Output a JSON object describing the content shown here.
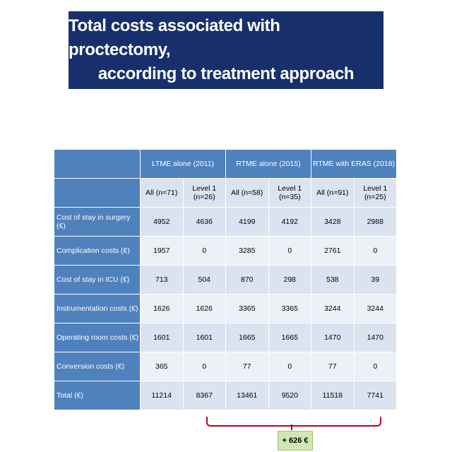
{
  "title": {
    "line1": "Total costs associated with proctectomy,",
    "line2": "according to treatment approach"
  },
  "table": {
    "groups": [
      "LTME alone (2011)",
      "RTME alone (2015)",
      "RTME with ERAS (2018)"
    ],
    "subheaders": [
      "All (n=71)",
      "Level 1 (n=26)",
      "All (n=58)",
      "Level 1 (n=35)",
      "All (n=91)",
      "Level 1 (n=25)"
    ],
    "rows": [
      {
        "label": "Cost of stay in surgery (€)",
        "values": [
          "4952",
          "4636",
          "4199",
          "4192",
          "3428",
          "2988"
        ]
      },
      {
        "label": "Complication costs (€)",
        "values": [
          "1957",
          "0",
          "3285",
          "0",
          "2761",
          "0"
        ]
      },
      {
        "label": "Cost of stay in ICU (€)",
        "values": [
          "713",
          "504",
          "870",
          "298",
          "538",
          "39"
        ]
      },
      {
        "label": "Instrumentation costs (€)",
        "values": [
          "1626",
          "1626",
          "3365",
          "3365",
          "3244",
          "3244"
        ]
      },
      {
        "label": "Operating room costs (€)",
        "values": [
          "1601",
          "1601",
          "1665",
          "1665",
          "1470",
          "1470"
        ]
      },
      {
        "label": "Conversion costs (€)",
        "values": [
          "365",
          "0",
          "77",
          "0",
          "77",
          "0"
        ]
      },
      {
        "label": "Total (€)",
        "values": [
          "11214",
          "8367",
          "13461",
          "9520",
          "11518",
          "7741"
        ]
      }
    ]
  },
  "annotation": {
    "difference": "+ 626 €"
  },
  "colors": {
    "title_bg": "#17306b",
    "header_blue": "#4f81bd",
    "bracket_red": "#c0001e",
    "badge_green": "#d1e6b3"
  }
}
